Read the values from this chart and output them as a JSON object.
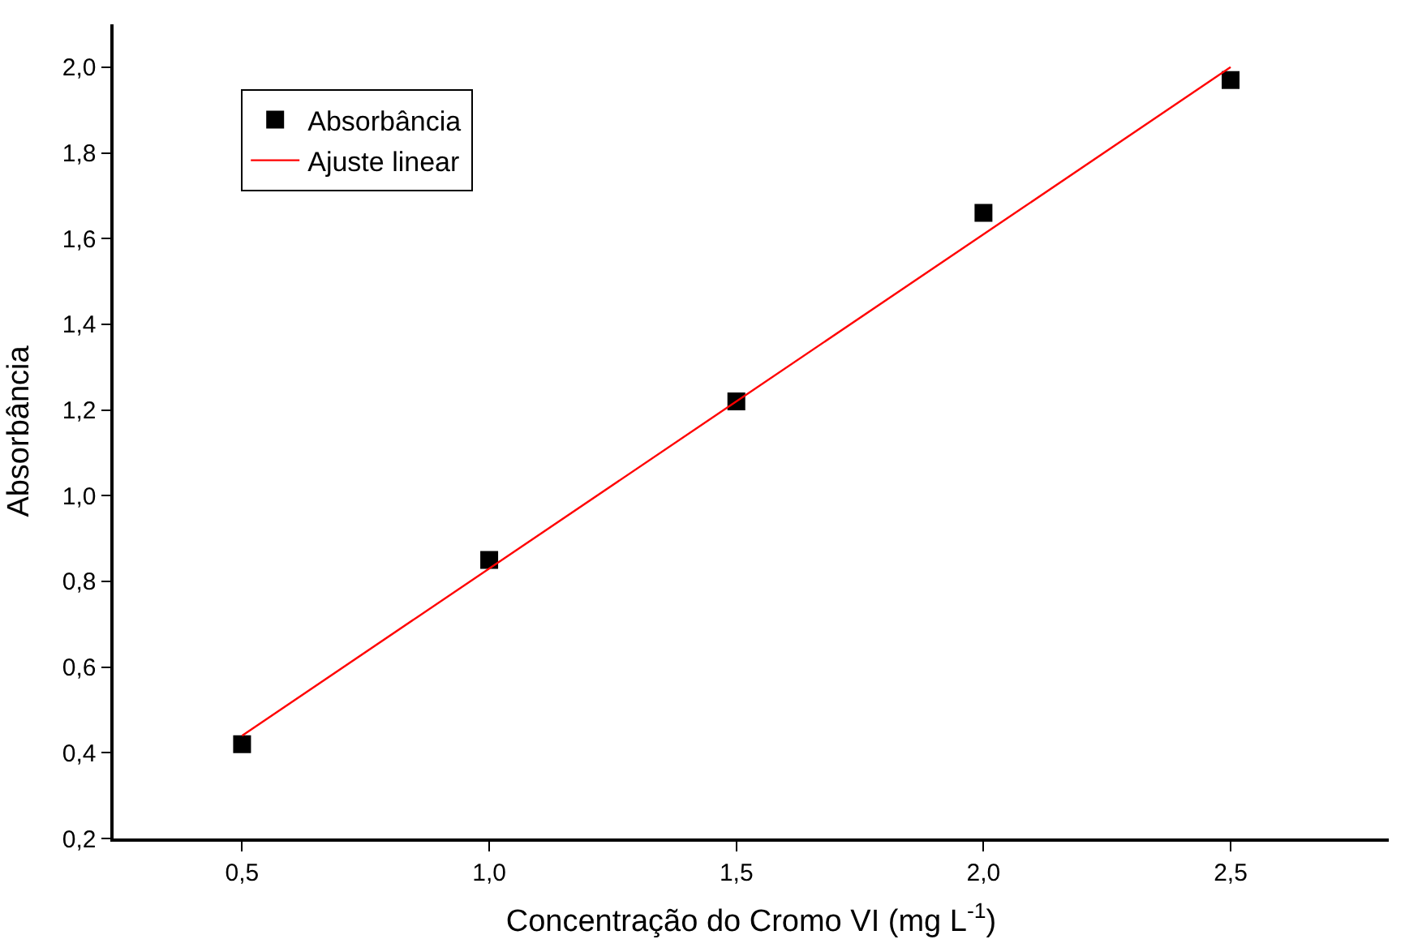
{
  "chart_data": {
    "type": "scatter",
    "xlabel": "Concentração do Cromo VI (mg L$^{-1}$)",
    "ylabel": "Absorbância",
    "series": [
      {
        "name": "Absorbância",
        "color": "#000000",
        "marker": "square",
        "x": [
          0.5,
          1.0,
          1.5,
          2.0,
          2.5
        ],
        "values": [
          0.42,
          0.85,
          1.22,
          1.66,
          1.97
        ]
      },
      {
        "name": "Ajuste linear",
        "type": "line",
        "color": "#ff0000",
        "marker": "none",
        "line_style": "solid",
        "x": [
          0.5,
          2.5
        ],
        "values": [
          0.44,
          2.0
        ]
      }
    ],
    "xlim": [
      0.24,
      2.82
    ],
    "ylim": [
      0.2,
      2.1
    ],
    "xticks": [
      {
        "value": 0.5,
        "label": "0,5"
      },
      {
        "value": 1.0,
        "label": "1,0"
      },
      {
        "value": 1.5,
        "label": "1,5"
      },
      {
        "value": 2.0,
        "label": "2,0"
      },
      {
        "value": 2.5,
        "label": "2,5"
      }
    ],
    "yticks": [
      {
        "value": 0.2,
        "label": "0,2"
      },
      {
        "value": 0.4,
        "label": "0,4"
      },
      {
        "value": 0.6,
        "label": "0,6"
      },
      {
        "value": 0.8,
        "label": "0,8"
      },
      {
        "value": 1.0,
        "label": "1,0"
      },
      {
        "value": 1.2,
        "label": "1,2"
      },
      {
        "value": 1.4,
        "label": "1,4"
      },
      {
        "value": 1.6,
        "label": "1,6"
      },
      {
        "value": 1.8,
        "label": "1,8"
      },
      {
        "value": 2.0,
        "label": "2,0"
      }
    ],
    "grid": false,
    "legend": "top left"
  }
}
